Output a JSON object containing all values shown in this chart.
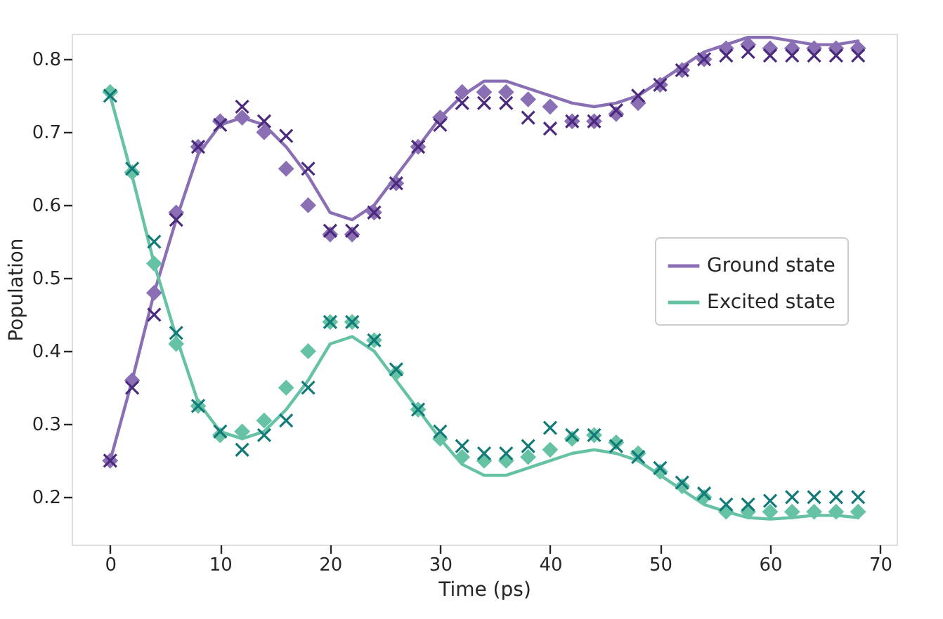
{
  "chart_data": {
    "type": "line",
    "xlabel": "Time (ps)",
    "ylabel": "Population",
    "x": [
      0,
      2,
      4,
      6,
      8,
      10,
      12,
      14,
      16,
      18,
      20,
      22,
      24,
      26,
      28,
      30,
      32,
      34,
      36,
      38,
      40,
      42,
      44,
      46,
      48,
      50,
      52,
      54,
      56,
      58,
      60,
      62,
      64,
      66,
      68
    ],
    "xlim": [
      -3.5,
      71.5
    ],
    "xticks": [
      0,
      10,
      20,
      30,
      40,
      50,
      60,
      70
    ],
    "ylim": [
      0.135,
      0.835
    ],
    "yticks": [
      0.2,
      0.3,
      0.4,
      0.5,
      0.6,
      0.7,
      0.8
    ],
    "grid": false,
    "legend": "right",
    "series": [
      {
        "name": "Ground state",
        "line_style": "solid",
        "color": "#8a6fb5",
        "values": [
          0.25,
          0.36,
          0.48,
          0.58,
          0.67,
          0.71,
          0.72,
          0.71,
          0.68,
          0.64,
          0.59,
          0.58,
          0.6,
          0.64,
          0.68,
          0.72,
          0.75,
          0.77,
          0.77,
          0.76,
          0.75,
          0.74,
          0.735,
          0.74,
          0.75,
          0.77,
          0.79,
          0.81,
          0.82,
          0.83,
          0.83,
          0.825,
          0.82,
          0.82,
          0.825
        ]
      },
      {
        "name": "Excited state",
        "line_style": "solid",
        "color": "#66c2a5",
        "values": [
          0.75,
          0.64,
          0.52,
          0.42,
          0.33,
          0.29,
          0.28,
          0.29,
          0.32,
          0.36,
          0.41,
          0.42,
          0.4,
          0.36,
          0.32,
          0.28,
          0.245,
          0.23,
          0.23,
          0.24,
          0.25,
          0.26,
          0.265,
          0.26,
          0.25,
          0.23,
          0.21,
          0.19,
          0.18,
          0.172,
          0.17,
          0.172,
          0.175,
          0.175,
          0.172
        ]
      },
      {
        "type": "scatter",
        "marker": "diamond",
        "color": "#8a6fb5",
        "values": [
          0.25,
          0.36,
          0.48,
          0.59,
          0.68,
          0.715,
          0.72,
          0.7,
          0.65,
          0.6,
          0.56,
          0.56,
          0.59,
          0.63,
          0.68,
          0.72,
          0.755,
          0.755,
          0.755,
          0.745,
          0.735,
          0.715,
          0.715,
          0.725,
          0.74,
          0.765,
          0.785,
          0.8,
          0.815,
          0.82,
          0.815,
          0.815,
          0.815,
          0.815,
          0.815
        ]
      },
      {
        "type": "scatter",
        "marker": "cross",
        "color": "#4b2a7e",
        "values": [
          0.25,
          0.35,
          0.45,
          0.58,
          0.68,
          0.71,
          0.735,
          0.715,
          0.695,
          0.65,
          0.565,
          0.565,
          0.59,
          0.63,
          0.68,
          0.71,
          0.74,
          0.74,
          0.74,
          0.72,
          0.705,
          0.715,
          0.715,
          0.73,
          0.75,
          0.765,
          0.785,
          0.8,
          0.805,
          0.81,
          0.805,
          0.805,
          0.805,
          0.805,
          0.805
        ]
      },
      {
        "type": "scatter",
        "marker": "diamond",
        "color": "#66c2a5",
        "values": [
          0.755,
          0.645,
          0.52,
          0.41,
          0.325,
          0.285,
          0.29,
          0.305,
          0.35,
          0.4,
          0.44,
          0.44,
          0.415,
          0.37,
          0.32,
          0.28,
          0.255,
          0.25,
          0.25,
          0.255,
          0.265,
          0.28,
          0.285,
          0.275,
          0.26,
          0.235,
          0.215,
          0.2,
          0.18,
          0.18,
          0.18,
          0.18,
          0.18,
          0.18,
          0.18
        ]
      },
      {
        "type": "scatter",
        "marker": "cross",
        "color": "#127a78",
        "values": [
          0.75,
          0.65,
          0.55,
          0.425,
          0.325,
          0.29,
          0.265,
          0.285,
          0.305,
          0.35,
          0.44,
          0.44,
          0.415,
          0.375,
          0.32,
          0.29,
          0.27,
          0.26,
          0.26,
          0.27,
          0.295,
          0.285,
          0.285,
          0.27,
          0.255,
          0.24,
          0.22,
          0.205,
          0.19,
          0.19,
          0.195,
          0.2,
          0.2,
          0.2,
          0.2
        ]
      }
    ]
  }
}
